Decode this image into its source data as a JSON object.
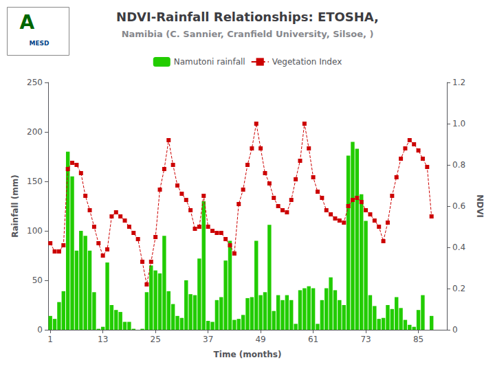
{
  "chart_data": {
    "type": "bar",
    "title": "NDVI-Rainfall Relationships: ETOSHA,",
    "subtitle": "Namibia (C. Sannier, Cranfield University, Silsoe, )",
    "annotations": [
      "A",
      "MESD"
    ],
    "xlabel": "Time (months)",
    "ylabel": "Rainfall (mm)",
    "y2label": "NDVI",
    "x": [
      1,
      2,
      3,
      4,
      5,
      6,
      7,
      8,
      9,
      10,
      11,
      12,
      13,
      14,
      15,
      16,
      17,
      18,
      19,
      20,
      21,
      22,
      23,
      24,
      25,
      26,
      27,
      28,
      29,
      30,
      31,
      32,
      33,
      34,
      35,
      36,
      37,
      38,
      39,
      40,
      41,
      42,
      43,
      44,
      45,
      46,
      47,
      48,
      49,
      50,
      51,
      52,
      53,
      54,
      55,
      56,
      57,
      58,
      59,
      60,
      61,
      62,
      63,
      64,
      65,
      66,
      67,
      68,
      69,
      70,
      71,
      72,
      73,
      74,
      75,
      76,
      77,
      78,
      79,
      80,
      81,
      82,
      83,
      84,
      85,
      86,
      87,
      88
    ],
    "xlim": [
      0.5,
      91.5
    ],
    "xticks": [
      1,
      13,
      25,
      37,
      49,
      61,
      73,
      85
    ],
    "ylim": [
      0,
      250
    ],
    "yticks": [
      0,
      50,
      100,
      150,
      200,
      250
    ],
    "y2lim": [
      0,
      1.2
    ],
    "y2ticks": [
      0,
      0.2,
      0.4,
      0.6,
      0.8,
      {
        "value": 1,
        "label": "1.0"
      },
      1.2
    ],
    "grid": false,
    "legend": "top",
    "series": [
      {
        "name": "Namutoni rainfall",
        "type": "bar",
        "color": "#22CC00",
        "values": [
          14,
          11,
          28,
          39,
          180,
          155,
          80,
          100,
          95,
          80,
          38,
          1,
          3,
          68,
          25,
          20,
          18,
          8,
          8,
          1,
          0,
          1,
          38,
          65,
          60,
          57,
          95,
          39,
          26,
          14,
          12,
          50,
          36,
          35,
          72,
          130,
          9,
          8,
          30,
          33,
          70,
          90,
          10,
          11,
          15,
          32,
          33,
          90,
          35,
          38,
          106,
          19,
          35,
          30,
          35,
          30,
          6,
          40,
          42,
          44,
          42,
          6,
          30,
          42,
          53,
          40,
          30,
          25,
          176,
          190,
          183,
          137,
          110,
          35,
          24,
          11,
          12,
          25,
          21,
          33,
          22,
          10,
          5,
          3,
          20,
          35,
          0,
          14
        ]
      },
      {
        "name": "Vegetation Index",
        "type": "line",
        "axis": "y2",
        "color": "#CC0000",
        "marker": "square",
        "line_style": "dashed",
        "values": [
          0.42,
          0.38,
          0.38,
          0.41,
          0.78,
          0.81,
          0.8,
          0.76,
          0.65,
          0.58,
          0.5,
          0.42,
          0.36,
          0.39,
          0.55,
          0.57,
          0.55,
          0.53,
          0.5,
          0.47,
          0.44,
          0.33,
          0.22,
          0.33,
          0.45,
          0.68,
          0.78,
          0.92,
          0.8,
          0.7,
          0.66,
          0.63,
          0.58,
          0.49,
          0.5,
          0.65,
          0.5,
          0.48,
          0.47,
          0.47,
          0.44,
          0.41,
          0.37,
          0.61,
          0.68,
          0.8,
          0.88,
          1.0,
          0.88,
          0.76,
          0.71,
          0.64,
          0.6,
          0.58,
          0.57,
          0.63,
          0.73,
          0.82,
          1.0,
          0.88,
          0.74,
          0.67,
          0.64,
          0.58,
          0.56,
          0.54,
          0.53,
          0.52,
          0.6,
          0.63,
          0.64,
          0.62,
          0.58,
          0.56,
          0.53,
          0.5,
          0.43,
          0.52,
          0.65,
          0.74,
          0.83,
          0.88,
          0.92,
          0.9,
          0.87,
          0.83,
          0.79,
          0.55
        ]
      }
    ]
  }
}
